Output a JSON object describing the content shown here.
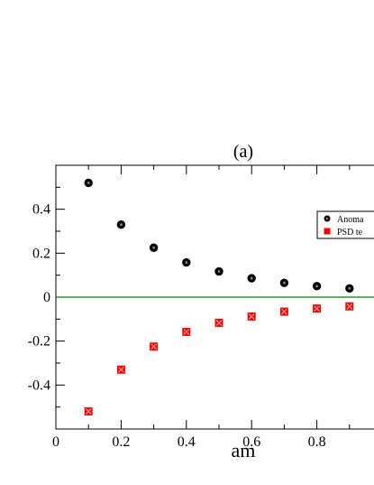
{
  "chart_data": {
    "type": "scatter",
    "title": "(a)",
    "xlabel": "am",
    "ylabel": "",
    "xlim": [
      0,
      1.0
    ],
    "ylim": [
      -0.6,
      0.6
    ],
    "xticks": [
      0,
      0.2,
      0.4,
      0.6,
      0.8
    ],
    "xtick_labels": [
      "0",
      "0.2",
      "0.4",
      "0.6",
      "0.8"
    ],
    "yticks": [
      -0.4,
      -0.2,
      0,
      0.2,
      0.4
    ],
    "ytick_labels": [
      "-0.4",
      "-0.2",
      "0",
      "0.2",
      "0.4"
    ],
    "grid": false,
    "legend_position": "top-right",
    "reference_line": {
      "y": 0,
      "color": "#008000"
    },
    "series": [
      {
        "name": "Anoma",
        "marker": "circle",
        "color": "#000000",
        "x": [
          0.1,
          0.2,
          0.3,
          0.4,
          0.5,
          0.6,
          0.7,
          0.8,
          0.9
        ],
        "y": [
          0.52,
          0.33,
          0.225,
          0.158,
          0.117,
          0.086,
          0.065,
          0.05,
          0.04
        ]
      },
      {
        "name": "PSD te",
        "marker": "square",
        "color": "#ff0000",
        "x": [
          0.1,
          0.2,
          0.3,
          0.4,
          0.5,
          0.6,
          0.7,
          0.8,
          0.9
        ],
        "y": [
          -0.52,
          -0.33,
          -0.225,
          -0.158,
          -0.117,
          -0.088,
          -0.066,
          -0.052,
          -0.042
        ]
      }
    ]
  }
}
